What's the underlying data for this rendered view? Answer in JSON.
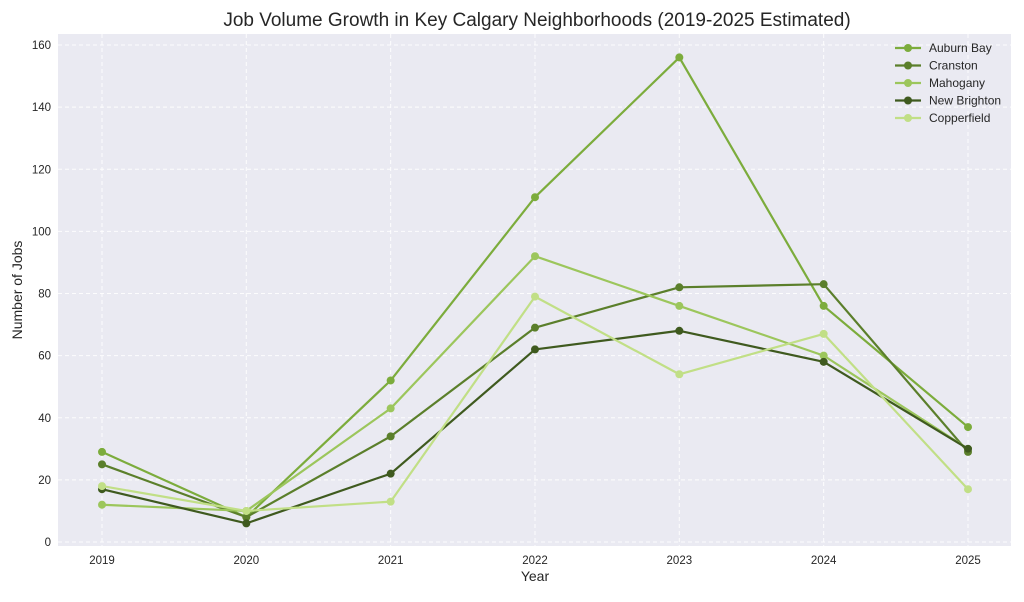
{
  "chart_data": {
    "type": "line",
    "title": "Job Volume Growth in Key Calgary Neighborhoods (2019-2025 Estimated)",
    "xlabel": "Year",
    "ylabel": "Number of Jobs",
    "x": [
      "2019",
      "2020",
      "2021",
      "2022",
      "2023",
      "2024",
      "2025"
    ],
    "ylim": [
      0,
      160
    ],
    "yticks": [
      0,
      20,
      40,
      60,
      80,
      100,
      120,
      140,
      160
    ],
    "yticklabels": [
      "0",
      "20",
      "40",
      "60",
      "80",
      "100",
      "120",
      "140",
      "160"
    ],
    "grid": true,
    "legend_position": "top-right",
    "colors": {
      "plot_bg": "#eaeaf2",
      "page_bg": "#ffffff"
    },
    "series": [
      {
        "name": "Auburn Bay",
        "color": "#7cac3c",
        "values": [
          29,
          8,
          52,
          111,
          156,
          76,
          37
        ]
      },
      {
        "name": "Cranston",
        "color": "#5b7f2b",
        "values": [
          25,
          8,
          34,
          69,
          82,
          83,
          29
        ]
      },
      {
        "name": "Mahogany",
        "color": "#9cc65c",
        "values": [
          12,
          10,
          43,
          92,
          76,
          60,
          30
        ]
      },
      {
        "name": "New Brighton",
        "color": "#3f5a1f",
        "values": [
          17,
          6,
          22,
          62,
          68,
          58,
          30
        ]
      },
      {
        "name": "Copperfield",
        "color": "#c1df86",
        "values": [
          18,
          10,
          13,
          79,
          54,
          67,
          17
        ]
      }
    ]
  }
}
